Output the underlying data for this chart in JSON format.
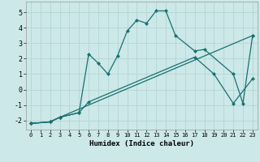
{
  "xlabel": "Humidex (Indice chaleur)",
  "xlim": [
    -0.5,
    23.5
  ],
  "ylim": [
    -2.6,
    5.7
  ],
  "xticks": [
    0,
    1,
    2,
    3,
    4,
    5,
    6,
    7,
    8,
    9,
    10,
    11,
    12,
    13,
    14,
    15,
    16,
    17,
    18,
    19,
    20,
    21,
    22,
    23
  ],
  "yticks": [
    -2,
    -1,
    0,
    1,
    2,
    3,
    4,
    5
  ],
  "background_color": "#cce8e8",
  "grid_color": "#b8d8d8",
  "line_color": "#1a7070",
  "line1_x": [
    0,
    2,
    3,
    5,
    6,
    7,
    8,
    9,
    10,
    11,
    12,
    13,
    14,
    15,
    17,
    18,
    21,
    22,
    23
  ],
  "line1_y": [
    -2.2,
    -2.1,
    -1.8,
    -1.5,
    2.3,
    1.7,
    1.0,
    2.2,
    3.8,
    4.5,
    4.3,
    5.1,
    5.1,
    3.5,
    2.5,
    2.6,
    1.0,
    -0.9,
    3.5
  ],
  "line2_x": [
    0,
    2,
    3,
    5,
    6,
    17,
    19,
    21,
    23
  ],
  "line2_y": [
    -2.2,
    -2.1,
    -1.8,
    -1.5,
    -0.8,
    2.1,
    1.0,
    -0.9,
    0.7
  ],
  "line3_x": [
    0,
    2,
    3,
    23
  ],
  "line3_y": [
    -2.2,
    -2.1,
    -1.8,
    3.5
  ]
}
